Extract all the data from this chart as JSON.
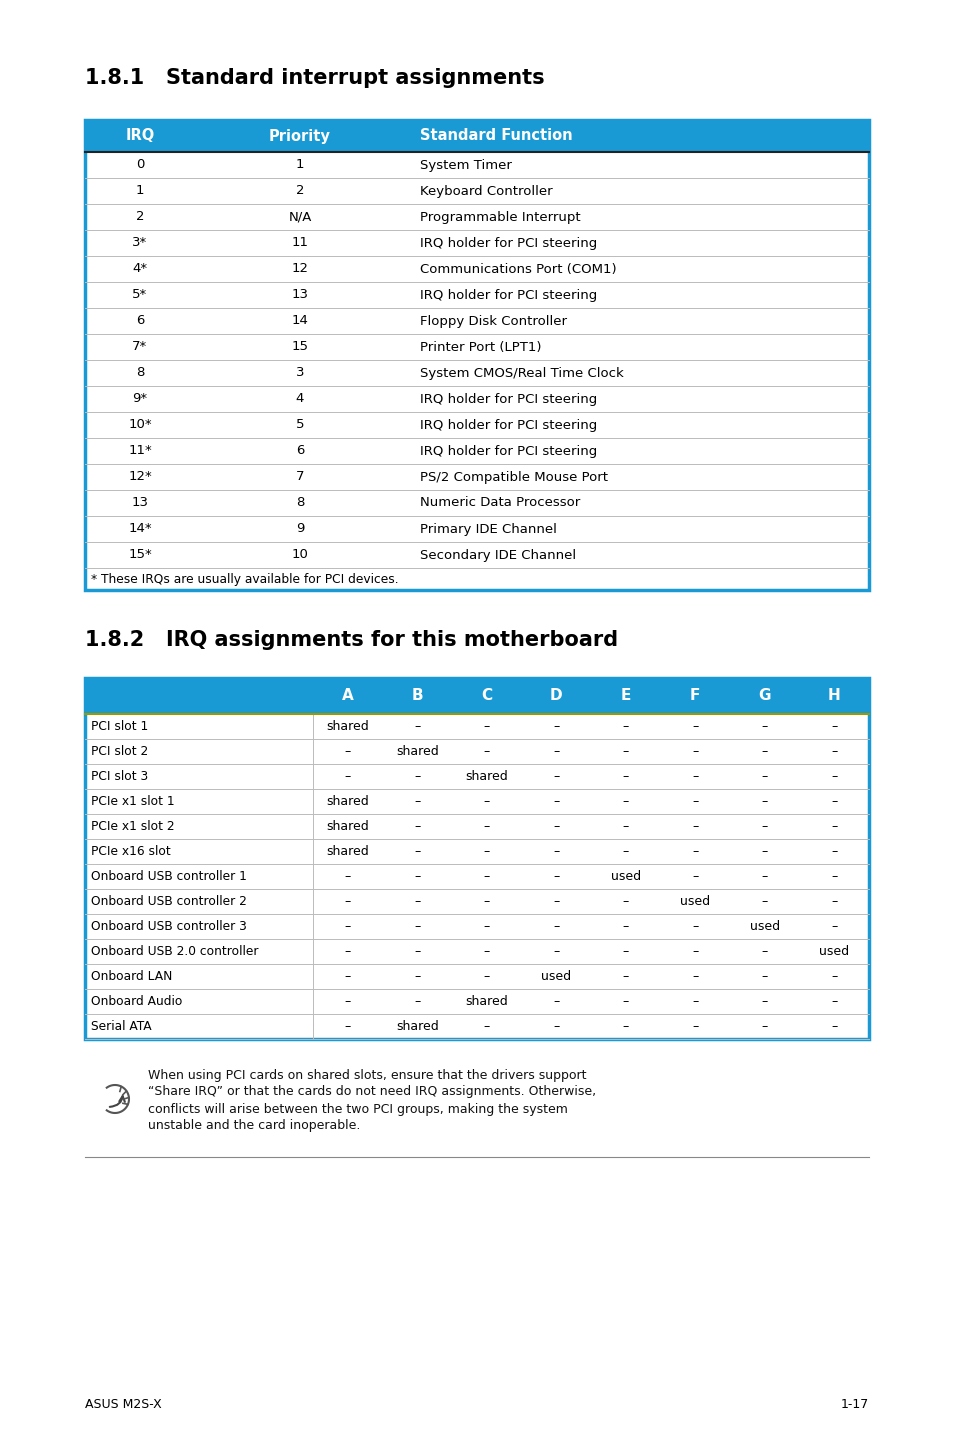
{
  "title1": "1.8.1   Standard interrupt assignments",
  "title2": "1.8.2   IRQ assignments for this motherboard",
  "header_color": "#1a9ad4",
  "header_text_color": "#ffffff",
  "border_color": "#1a9ad4",
  "row_line_color": "#bbbbbb",
  "bg_color": "#ffffff",
  "text_color": "#000000",
  "table1_headers": [
    "IRQ",
    "Priority",
    "Standard Function"
  ],
  "table1_rows": [
    [
      "0",
      "1",
      "System Timer"
    ],
    [
      "1",
      "2",
      "Keyboard Controller"
    ],
    [
      "2",
      "N/A",
      "Programmable Interrupt"
    ],
    [
      "3*",
      "11",
      "IRQ holder for PCI steering"
    ],
    [
      "4*",
      "12",
      "Communications Port (COM1)"
    ],
    [
      "5*",
      "13",
      "IRQ holder for PCI steering"
    ],
    [
      "6",
      "14",
      "Floppy Disk Controller"
    ],
    [
      "7*",
      "15",
      "Printer Port (LPT1)"
    ],
    [
      "8",
      "3",
      "System CMOS/Real Time Clock"
    ],
    [
      "9*",
      "4",
      "IRQ holder for PCI steering"
    ],
    [
      "10*",
      "5",
      "IRQ holder for PCI steering"
    ],
    [
      "11*",
      "6",
      "IRQ holder for PCI steering"
    ],
    [
      "12*",
      "7",
      "PS/2 Compatible Mouse Port"
    ],
    [
      "13",
      "8",
      "Numeric Data Processor"
    ],
    [
      "14*",
      "9",
      "Primary IDE Channel"
    ],
    [
      "15*",
      "10",
      "Secondary IDE Channel"
    ]
  ],
  "table1_footnote": "* These IRQs are usually available for PCI devices.",
  "table2_col_headers": [
    "",
    "A",
    "B",
    "C",
    "D",
    "E",
    "F",
    "G",
    "H"
  ],
  "table2_rows": [
    [
      "PCI slot 1",
      "shared",
      "–",
      "–",
      "–",
      "–",
      "–",
      "–",
      "–"
    ],
    [
      "PCI slot 2",
      "–",
      "shared",
      "–",
      "–",
      "–",
      "–",
      "–",
      "–"
    ],
    [
      "PCI slot 3",
      "–",
      "–",
      "shared",
      "–",
      "–",
      "–",
      "–",
      "–"
    ],
    [
      "PCIe x1 slot 1",
      "shared",
      "–",
      "–",
      "–",
      "–",
      "–",
      "–",
      "–"
    ],
    [
      "PCIe x1 slot 2",
      "shared",
      "–",
      "–",
      "–",
      "–",
      "–",
      "–",
      "–"
    ],
    [
      "PCIe x16 slot",
      "shared",
      "–",
      "–",
      "–",
      "–",
      "–",
      "–",
      "–"
    ],
    [
      "Onboard USB controller 1",
      "–",
      "–",
      "–",
      "–",
      "used",
      "–",
      "–",
      "–"
    ],
    [
      "Onboard USB controller 2",
      "–",
      "–",
      "–",
      "–",
      "–",
      "used",
      "–",
      "–"
    ],
    [
      "Onboard USB controller 3",
      "–",
      "–",
      "–",
      "–",
      "–",
      "–",
      "used",
      "–"
    ],
    [
      "Onboard USB 2.0 controller",
      "–",
      "–",
      "–",
      "–",
      "–",
      "–",
      "–",
      "used"
    ],
    [
      "Onboard LAN",
      "–",
      "–",
      "–",
      "used",
      "–",
      "–",
      "–",
      "–"
    ],
    [
      "Onboard Audio",
      "–",
      "–",
      "shared",
      "–",
      "–",
      "–",
      "–",
      "–"
    ],
    [
      "Serial ATA",
      "–",
      "shared",
      "–",
      "–",
      "–",
      "–",
      "–",
      "–"
    ]
  ],
  "note_lines": [
    "When using PCI cards on shared slots, ensure that the drivers support",
    "“Share IRQ” or that the cards do not need IRQ assignments. Otherwise,",
    "conflicts will arise between the two PCI groups, making the system",
    "unstable and the card inoperable."
  ],
  "footer_left": "ASUS M2S-X",
  "footer_right": "1-17"
}
